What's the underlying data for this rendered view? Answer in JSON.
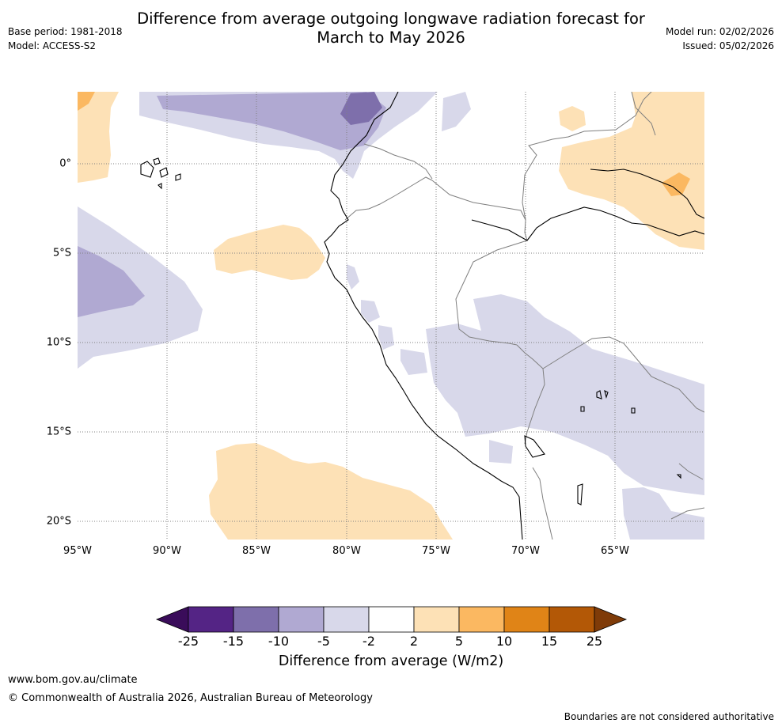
{
  "title": {
    "line1": "Difference from average outgoing longwave radiation forecast for",
    "line2": "March to May 2026"
  },
  "meta_left": {
    "base_period": "Base period: 1981-2018",
    "model": "Model: ACCESS-S2"
  },
  "meta_right": {
    "model_run": "Model run: 02/02/2026",
    "issued": "Issued: 05/02/2026"
  },
  "map": {
    "longitude_range": [
      -95,
      -60
    ],
    "latitude_range": [
      -21,
      4
    ],
    "x_ticks": [
      "95°W",
      "90°W",
      "85°W",
      "80°W",
      "75°W",
      "70°W",
      "65°W"
    ],
    "y_ticks": [
      "0°",
      "5°S",
      "10°S",
      "15°S",
      "20°S"
    ],
    "colors": {
      "very_low": "#b0a9d2",
      "low": "#d8d8ea",
      "high": "#fde1b6",
      "very_high": "#fbb861",
      "darkest_purple": "#7e6fab",
      "coast": "#000000",
      "border": "#7f7f7f"
    }
  },
  "colorbar": {
    "label": "Difference from average (W/m2)",
    "ticks": [
      "-25",
      "-15",
      "-10",
      "-5",
      "-2",
      "2",
      "5",
      "10",
      "15",
      "25"
    ],
    "colors": [
      "#3a0c5a",
      "#542485",
      "#7e6fab",
      "#b0a9d2",
      "#d8d8ea",
      "#ffffff",
      "#fde1b6",
      "#fbb861",
      "#e08417",
      "#b35806",
      "#7f3b08"
    ]
  },
  "footer": {
    "url": "www.bom.gov.au/climate",
    "copyright": "© Commonwealth of Australia 2026, Australian Bureau of Meteorology",
    "disclaimer": "Boundaries are not considered authoritative"
  }
}
